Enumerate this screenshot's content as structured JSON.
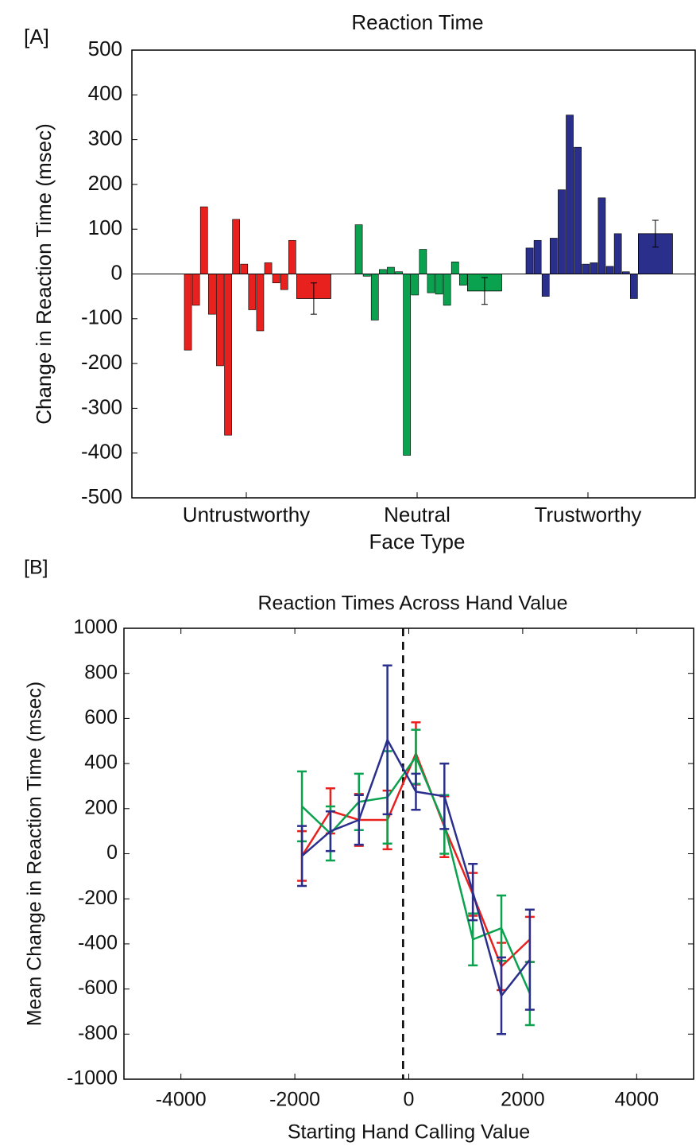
{
  "chart_data": [
    {
      "type": "bar",
      "panel_label": "[A]",
      "title": "Reaction Time",
      "x_label": "Face Type",
      "y_label": "Change in Reaction Time (msec)",
      "categories": [
        "Untrustworthy",
        "Neutral",
        "Trustworthy"
      ],
      "groups": [
        {
          "color": "#e8211f",
          "values": [
            -170,
            -70,
            150,
            -90,
            -205,
            -360,
            122,
            22,
            -80,
            -127,
            25,
            -20,
            -35,
            75
          ],
          "mean": -55,
          "error": 35
        },
        {
          "color": "#0aa14f",
          "values": [
            110,
            -5,
            -103,
            10,
            15,
            5,
            -405,
            -47,
            55,
            -42,
            -45,
            -70,
            27,
            -25
          ],
          "mean": -38,
          "error": 30
        },
        {
          "color": "#2b2f8c",
          "values": [
            58,
            75,
            -50,
            80,
            188,
            355,
            283,
            22,
            25,
            170,
            17,
            90,
            5,
            -55
          ],
          "mean": 90,
          "error": 30
        }
      ],
      "ylim": [
        -500,
        500
      ],
      "yticks": [
        -500,
        -400,
        -300,
        -200,
        -100,
        0,
        100,
        200,
        300,
        400,
        500
      ]
    },
    {
      "type": "line",
      "panel_label": "[B]",
      "title": "Reaction Times Across Hand Value",
      "x_label": "Starting Hand Calling Value",
      "y_label": "Mean Change in Reaction Time (msec)",
      "x": [
        -1875,
        -1375,
        -875,
        -375,
        125,
        625,
        1125,
        1625,
        2125
      ],
      "series": [
        {
          "color": "#e8211f",
          "values": [
            -10,
            190,
            150,
            150,
            445,
            120,
            -180,
            -500,
            -380
          ],
          "errors": [
            110,
            100,
            115,
            130,
            138,
            135,
            95,
            105,
            100
          ]
        },
        {
          "color": "#0aa14f",
          "values": [
            210,
            90,
            230,
            250,
            430,
            130,
            -380,
            -330,
            -620
          ],
          "errors": [
            155,
            120,
            125,
            205,
            120,
            130,
            115,
            145,
            140
          ]
        },
        {
          "color": "#2b2f8c",
          "values": [
            -10,
            100,
            150,
            505,
            275,
            255,
            -170,
            -630,
            -470
          ],
          "errors": [
            133,
            88,
            110,
            330,
            80,
            145,
            125,
            170,
            222
          ]
        }
      ],
      "vline": -100,
      "xlim": [
        -5000,
        5000
      ],
      "xticks": [
        -4000,
        -2000,
        0,
        2000,
        4000
      ],
      "ylim": [
        -1000,
        1000
      ],
      "yticks": [
        -1000,
        -800,
        -600,
        -400,
        -200,
        0,
        200,
        400,
        600,
        800,
        1000
      ]
    }
  ]
}
